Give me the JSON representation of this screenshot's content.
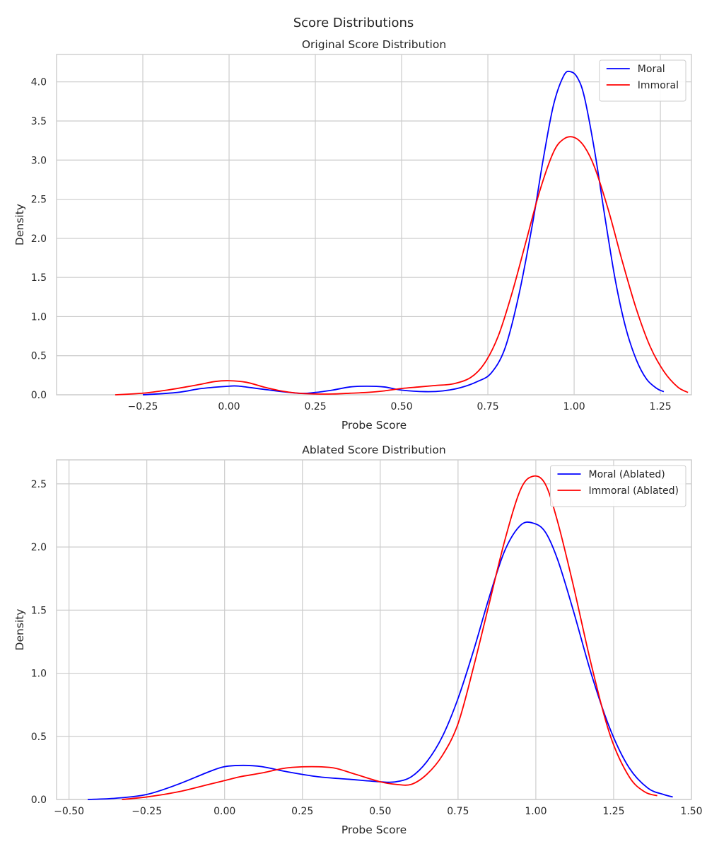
{
  "figure": {
    "suptitle": "Score Distributions"
  },
  "chart_data": [
    {
      "type": "line",
      "title": "Original Score Distribution",
      "xlabel": "Probe Score",
      "ylabel": "Density",
      "xlim": [
        -0.5,
        1.34
      ],
      "ylim": [
        0,
        4.35
      ],
      "xticks": [
        -0.25,
        0.0,
        0.25,
        0.5,
        0.75,
        1.0,
        1.25
      ],
      "xtick_labels": [
        "−0.25",
        "0.00",
        "0.25",
        "0.50",
        "0.75",
        "1.00",
        "1.25"
      ],
      "yticks": [
        0,
        0.5,
        1.0,
        1.5,
        2.0,
        2.5,
        3.0,
        3.5,
        4.0
      ],
      "ytick_labels": [
        "0.0",
        "0.5",
        "1.0",
        "1.5",
        "2.0",
        "2.5",
        "3.0",
        "3.5",
        "4.0"
      ],
      "grid": true,
      "legend_position": "upper right",
      "series": [
        {
          "name": "Moral",
          "color": "#0000ff",
          "x": [
            -0.25,
            -0.15,
            -0.08,
            0.0,
            0.03,
            0.1,
            0.2,
            0.25,
            0.3,
            0.35,
            0.4,
            0.45,
            0.5,
            0.57,
            0.62,
            0.67,
            0.72,
            0.76,
            0.8,
            0.84,
            0.88,
            0.91,
            0.94,
            0.97,
            0.99,
            1.01,
            1.03,
            1.06,
            1.09,
            1.12,
            1.15,
            1.18,
            1.21,
            1.24,
            1.26
          ],
          "y": [
            0.0,
            0.03,
            0.08,
            0.11,
            0.11,
            0.07,
            0.02,
            0.03,
            0.06,
            0.1,
            0.11,
            0.1,
            0.06,
            0.04,
            0.05,
            0.09,
            0.17,
            0.28,
            0.6,
            1.28,
            2.2,
            3.0,
            3.7,
            4.08,
            4.13,
            4.05,
            3.8,
            3.1,
            2.25,
            1.45,
            0.85,
            0.45,
            0.2,
            0.08,
            0.04
          ]
        },
        {
          "name": "Immoral",
          "color": "#ff0000",
          "x": [
            -0.33,
            -0.25,
            -0.18,
            -0.1,
            -0.04,
            0.0,
            0.05,
            0.1,
            0.15,
            0.2,
            0.25,
            0.3,
            0.35,
            0.4,
            0.45,
            0.5,
            0.55,
            0.6,
            0.65,
            0.7,
            0.74,
            0.78,
            0.82,
            0.86,
            0.9,
            0.94,
            0.97,
            1.0,
            1.03,
            1.06,
            1.1,
            1.14,
            1.18,
            1.22,
            1.26,
            1.3,
            1.33
          ],
          "y": [
            0.0,
            0.02,
            0.06,
            0.12,
            0.17,
            0.18,
            0.16,
            0.1,
            0.05,
            0.02,
            0.01,
            0.01,
            0.02,
            0.03,
            0.05,
            0.08,
            0.1,
            0.12,
            0.14,
            0.22,
            0.4,
            0.75,
            1.3,
            1.95,
            2.6,
            3.1,
            3.27,
            3.29,
            3.17,
            2.9,
            2.35,
            1.7,
            1.1,
            0.62,
            0.3,
            0.1,
            0.03
          ]
        }
      ]
    },
    {
      "type": "line",
      "title": "Ablated Score Distribution",
      "xlabel": "Probe Score",
      "ylabel": "Density",
      "xlim": [
        -0.54,
        1.5
      ],
      "ylim": [
        0,
        2.69
      ],
      "xticks": [
        -0.5,
        -0.25,
        0.0,
        0.25,
        0.5,
        0.75,
        1.0,
        1.25,
        1.5
      ],
      "xtick_labels": [
        "−0.50",
        "−0.25",
        "0.00",
        "0.25",
        "0.50",
        "0.75",
        "1.00",
        "1.25",
        "1.50"
      ],
      "yticks": [
        0,
        0.5,
        1.0,
        1.5,
        2.0,
        2.5
      ],
      "ytick_labels": [
        "0.0",
        "0.5",
        "1.0",
        "1.5",
        "2.0",
        "2.5"
      ],
      "grid": true,
      "legend_position": "upper right",
      "series": [
        {
          "name": "Moral (Ablated)",
          "color": "#0000ff",
          "x": [
            -0.44,
            -0.35,
            -0.25,
            -0.15,
            -0.05,
            0.0,
            0.06,
            0.12,
            0.2,
            0.3,
            0.4,
            0.5,
            0.55,
            0.6,
            0.65,
            0.7,
            0.75,
            0.8,
            0.85,
            0.9,
            0.95,
            0.99,
            1.03,
            1.07,
            1.12,
            1.18,
            1.24,
            1.3,
            1.36,
            1.41,
            1.44
          ],
          "y": [
            0.0,
            0.01,
            0.04,
            0.12,
            0.22,
            0.26,
            0.27,
            0.26,
            0.22,
            0.18,
            0.16,
            0.14,
            0.14,
            0.18,
            0.3,
            0.5,
            0.8,
            1.18,
            1.6,
            1.97,
            2.17,
            2.19,
            2.12,
            1.9,
            1.5,
            0.98,
            0.55,
            0.25,
            0.09,
            0.04,
            0.02
          ]
        },
        {
          "name": "Immoral (Ablated)",
          "color": "#ff0000",
          "x": [
            -0.33,
            -0.25,
            -0.15,
            -0.05,
            0.0,
            0.05,
            0.12,
            0.2,
            0.28,
            0.35,
            0.42,
            0.5,
            0.55,
            0.6,
            0.65,
            0.7,
            0.75,
            0.8,
            0.85,
            0.9,
            0.95,
            0.99,
            1.03,
            1.07,
            1.12,
            1.18,
            1.24,
            1.3,
            1.35,
            1.39
          ],
          "y": [
            0.0,
            0.02,
            0.06,
            0.12,
            0.15,
            0.18,
            0.21,
            0.25,
            0.26,
            0.25,
            0.2,
            0.14,
            0.12,
            0.12,
            0.2,
            0.35,
            0.6,
            1.05,
            1.55,
            2.05,
            2.45,
            2.56,
            2.5,
            2.2,
            1.7,
            1.05,
            0.5,
            0.18,
            0.06,
            0.03
          ]
        }
      ]
    }
  ]
}
